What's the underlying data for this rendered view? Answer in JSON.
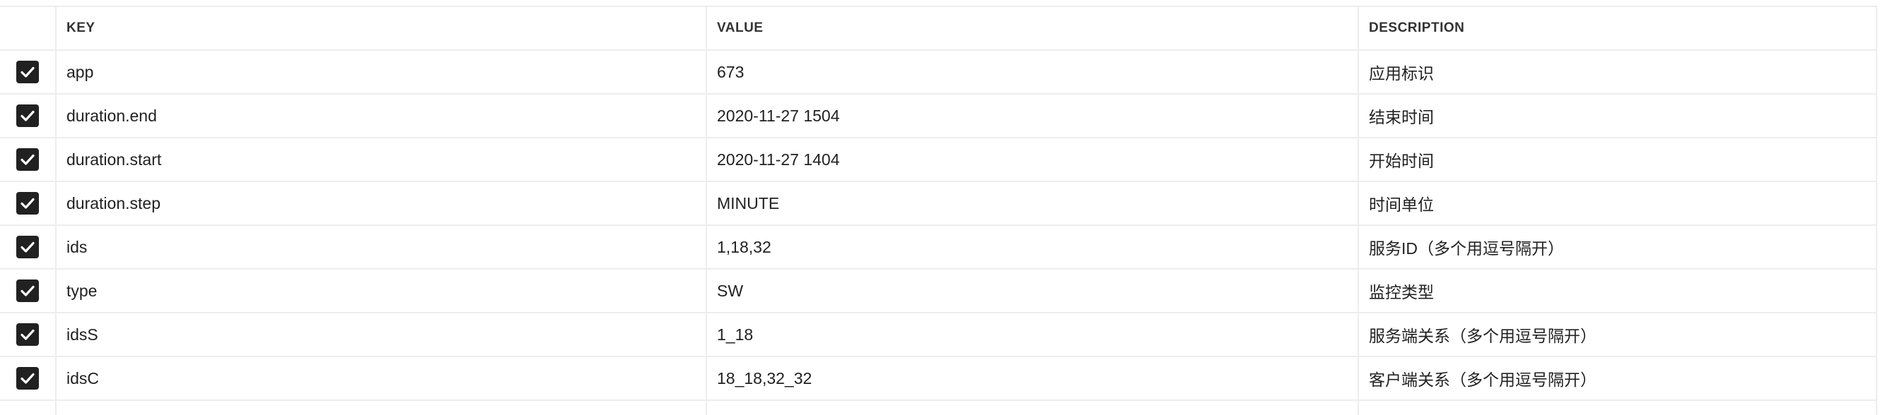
{
  "columns": {
    "key": "KEY",
    "value": "VALUE",
    "description": "DESCRIPTION"
  },
  "rows": [
    {
      "checked": true,
      "key": "app",
      "value": "673",
      "description": "应用标识"
    },
    {
      "checked": true,
      "key": "duration.end",
      "value": "2020-11-27 1504",
      "description": "结束时间"
    },
    {
      "checked": true,
      "key": "duration.start",
      "value": "2020-11-27 1404",
      "description": "开始时间"
    },
    {
      "checked": true,
      "key": "duration.step",
      "value": "MINUTE",
      "description": "时间单位"
    },
    {
      "checked": true,
      "key": "ids",
      "value": "1,18,32",
      "description": "服务ID（多个用逗号隔开）"
    },
    {
      "checked": true,
      "key": "type",
      "value": "SW",
      "description": "监控类型"
    },
    {
      "checked": true,
      "key": "idsS",
      "value": "1_18",
      "description": "服务端关系（多个用逗号隔开）"
    },
    {
      "checked": true,
      "key": "idsC",
      "value": "18_18,32_32",
      "description": "客户端关系（多个用逗号隔开）"
    }
  ],
  "icons": {
    "checkbox": "checkmark-icon"
  }
}
